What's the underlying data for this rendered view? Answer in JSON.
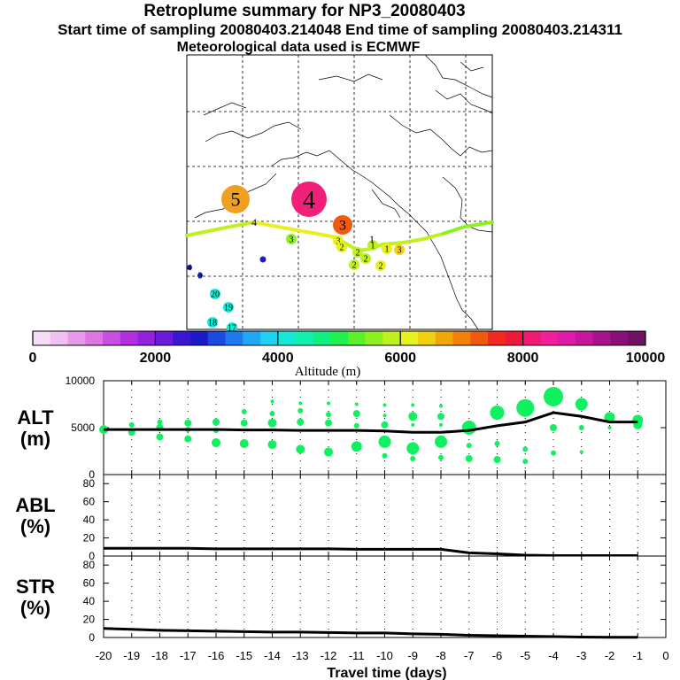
{
  "header": {
    "title": "Retroplume summary for NP3_20080403",
    "sampling": "Start time of sampling 20080403.214048     End time of sampling 20080403.214311",
    "met": "Meteorological data used is ECMWF"
  },
  "colorbar": {
    "label": "Altitude (m)",
    "ticks": [
      "0",
      "2000",
      "4000",
      "6000",
      "8000",
      "10000"
    ],
    "colors": [
      "#f6dcf6",
      "#f0c0f0",
      "#e79ae9",
      "#dc76e2",
      "#c94fe0",
      "#b22ee0",
      "#9420e0",
      "#6a1ad9",
      "#3a16d2",
      "#1a1ac8",
      "#1a4ae0",
      "#1f7af0",
      "#1fa8f5",
      "#1fd0f0",
      "#16e8d6",
      "#12f0b0",
      "#10f080",
      "#1ff050",
      "#5af02a",
      "#8ef020",
      "#c0f020",
      "#e8f01e",
      "#f0d010",
      "#f0a808",
      "#f08008",
      "#f05a10",
      "#f02a20",
      "#f01838",
      "#f01870",
      "#f0209a",
      "#e01aa8",
      "#c8169c",
      "#a8128a",
      "#8a1078",
      "#701060"
    ]
  },
  "chart_data": [
    {
      "type": "scatter",
      "name": "ALT",
      "ylabel": "ALT\n(m)",
      "ylabel_line1": "ALT",
      "ylabel_line2": "(m)",
      "ylim": [
        0,
        10000
      ],
      "yticks": [
        "0",
        "5000",
        "10000"
      ],
      "ytick_values": [
        0,
        5000,
        10000
      ],
      "xlim": [
        -20,
        0
      ],
      "mean_line": {
        "x": [
          -20,
          -19,
          -18,
          -17,
          -16,
          -15,
          -14,
          -13,
          -12,
          -11,
          -10,
          -9,
          -8,
          -7,
          -6,
          -5,
          -4,
          -3,
          -2,
          -1
        ],
        "y": [
          4800,
          4800,
          4800,
          4800,
          4800,
          4750,
          4750,
          4700,
          4700,
          4700,
          4650,
          4500,
          4500,
          4700,
          5200,
          5600,
          6600,
          6200,
          5600,
          5600
        ]
      },
      "clusters": [
        {
          "x": -20,
          "alt": 4800,
          "r": 5
        },
        {
          "x": -19,
          "alt": 5300,
          "r": 3
        },
        {
          "x": -19,
          "alt": 4500,
          "r": 4
        },
        {
          "x": -18,
          "alt": 5600,
          "r": 3
        },
        {
          "x": -18,
          "alt": 5000,
          "r": 4
        },
        {
          "x": -18,
          "alt": 4000,
          "r": 4
        },
        {
          "x": -17,
          "alt": 5500,
          "r": 4
        },
        {
          "x": -17,
          "alt": 4800,
          "r": 3
        },
        {
          "x": -17,
          "alt": 3800,
          "r": 4
        },
        {
          "x": -16,
          "alt": 5600,
          "r": 4
        },
        {
          "x": -16,
          "alt": 4700,
          "r": 3
        },
        {
          "x": -16,
          "alt": 3400,
          "r": 5
        },
        {
          "x": -15,
          "alt": 6700,
          "r": 3
        },
        {
          "x": -15,
          "alt": 5500,
          "r": 4
        },
        {
          "x": -15,
          "alt": 3300,
          "r": 5
        },
        {
          "x": -14,
          "alt": 7800,
          "r": 2
        },
        {
          "x": -14,
          "alt": 6500,
          "r": 3
        },
        {
          "x": -14,
          "alt": 5500,
          "r": 5
        },
        {
          "x": -14,
          "alt": 3200,
          "r": 5
        },
        {
          "x": -13,
          "alt": 7600,
          "r": 2
        },
        {
          "x": -13,
          "alt": 6800,
          "r": 3
        },
        {
          "x": -13,
          "alt": 5600,
          "r": 4
        },
        {
          "x": -13,
          "alt": 2700,
          "r": 5
        },
        {
          "x": -12,
          "alt": 7600,
          "r": 2
        },
        {
          "x": -12,
          "alt": 6400,
          "r": 3
        },
        {
          "x": -12,
          "alt": 5500,
          "r": 4
        },
        {
          "x": -12,
          "alt": 2400,
          "r": 5
        },
        {
          "x": -11,
          "alt": 7500,
          "r": 2
        },
        {
          "x": -11,
          "alt": 6500,
          "r": 4
        },
        {
          "x": -11,
          "alt": 5200,
          "r": 3
        },
        {
          "x": -11,
          "alt": 3000,
          "r": 6
        },
        {
          "x": -10,
          "alt": 7400,
          "r": 2
        },
        {
          "x": -10,
          "alt": 6300,
          "r": 2
        },
        {
          "x": -10,
          "alt": 5300,
          "r": 4
        },
        {
          "x": -10,
          "alt": 3500,
          "r": 7
        },
        {
          "x": -10,
          "alt": 2000,
          "r": 3
        },
        {
          "x": -9,
          "alt": 7400,
          "r": 2
        },
        {
          "x": -9,
          "alt": 6200,
          "r": 5
        },
        {
          "x": -9,
          "alt": 5300,
          "r": 2
        },
        {
          "x": -9,
          "alt": 2800,
          "r": 7
        },
        {
          "x": -9,
          "alt": 1700,
          "r": 3
        },
        {
          "x": -8,
          "alt": 7300,
          "r": 2
        },
        {
          "x": -8,
          "alt": 6200,
          "r": 4
        },
        {
          "x": -8,
          "alt": 5300,
          "r": 2
        },
        {
          "x": -8,
          "alt": 3500,
          "r": 7
        },
        {
          "x": -8,
          "alt": 1800,
          "r": 3
        },
        {
          "x": -7,
          "alt": 5000,
          "r": 8
        },
        {
          "x": -7,
          "alt": 3100,
          "r": 3
        },
        {
          "x": -7,
          "alt": 1700,
          "r": 4
        },
        {
          "x": -6,
          "alt": 6600,
          "r": 8
        },
        {
          "x": -6,
          "alt": 3300,
          "r": 3
        },
        {
          "x": -6,
          "alt": 1600,
          "r": 4
        },
        {
          "x": -5,
          "alt": 7100,
          "r": 10
        },
        {
          "x": -5,
          "alt": 2700,
          "r": 3
        },
        {
          "x": -5,
          "alt": 1400,
          "r": 3
        },
        {
          "x": -4,
          "alt": 8300,
          "r": 11
        },
        {
          "x": -4,
          "alt": 5000,
          "r": 4
        },
        {
          "x": -4,
          "alt": 2300,
          "r": 3
        },
        {
          "x": -3,
          "alt": 7500,
          "r": 7
        },
        {
          "x": -3,
          "alt": 5000,
          "r": 3
        },
        {
          "x": -3,
          "alt": 2400,
          "r": 2
        },
        {
          "x": -2,
          "alt": 6100,
          "r": 6
        },
        {
          "x": -2,
          "alt": 5000,
          "r": 2
        },
        {
          "x": -1,
          "alt": 5800,
          "r": 6
        },
        {
          "x": -1,
          "alt": 5300,
          "r": 5
        }
      ]
    },
    {
      "type": "line",
      "name": "ABL",
      "ylabel_line1": "ABL",
      "ylabel_line2": "(%)",
      "ylim": [
        0,
        90
      ],
      "yticks": [
        "0",
        "20",
        "40",
        "60",
        "80"
      ],
      "ytick_values": [
        0,
        20,
        40,
        60,
        80
      ],
      "x": [
        -20,
        -19,
        -18,
        -17,
        -16,
        -15,
        -14,
        -13,
        -12,
        -11,
        -10,
        -9,
        -8,
        -7,
        -6,
        -5,
        -4,
        -3,
        -2,
        -1
      ],
      "y": [
        8.5,
        8.5,
        8.5,
        8.5,
        8,
        8,
        8,
        8,
        8,
        7.5,
        7.5,
        7.5,
        7.5,
        3.5,
        2.5,
        1,
        0.5,
        0.5,
        0.5,
        0.5
      ]
    },
    {
      "type": "line",
      "name": "STR",
      "ylabel_line1": "STR",
      "ylabel_line2": "(%)",
      "ylim": [
        0,
        90
      ],
      "yticks": [
        "0",
        "20",
        "40",
        "60",
        "80"
      ],
      "ytick_values": [
        0,
        20,
        40,
        60,
        80
      ],
      "x": [
        -20,
        -19,
        -18,
        -17,
        -16,
        -15,
        -14,
        -13,
        -12,
        -11,
        -10,
        -9,
        -8,
        -7,
        -6,
        -5,
        -4,
        -3,
        -2,
        -1
      ],
      "y": [
        10,
        9,
        8,
        7.5,
        7,
        6.5,
        6,
        6,
        5.5,
        5,
        5,
        4,
        3.5,
        2.5,
        2,
        1.5,
        1,
        0.5,
        0.3,
        0.2
      ]
    }
  ],
  "xaxis": {
    "label": "Travel time (days)",
    "ticks": [
      "-20",
      "-19",
      "-18",
      "-17",
      "-16",
      "-15",
      "-14",
      "-13",
      "-12",
      "-11",
      "-10",
      "-9",
      "-8",
      "-7",
      "-6",
      "-5",
      "-4",
      "-3",
      "-2",
      "-1",
      "0"
    ],
    "values": [
      -20,
      -19,
      -18,
      -17,
      -16,
      -15,
      -14,
      -13,
      -12,
      -11,
      -10,
      -9,
      -8,
      -7,
      -6,
      -5,
      -4,
      -3,
      -2,
      -1,
      0
    ]
  },
  "map": {
    "markers": [
      {
        "label": "5",
        "color": "#f0a020",
        "size": "large"
      },
      {
        "label": "4",
        "color": "#f0207a",
        "size": "xlarge"
      },
      {
        "label": "3",
        "color": "#f05a10",
        "size": "medium"
      },
      {
        "label": "3",
        "color": "#8ef020",
        "size": "small"
      },
      {
        "label": "3",
        "color": "#e8f01e",
        "size": "small"
      },
      {
        "label": "2",
        "color": "#e8f01e",
        "size": "small"
      },
      {
        "label": "2",
        "color": "#c0f020",
        "size": "small"
      },
      {
        "label": "2",
        "color": "#c0f020",
        "size": "small"
      },
      {
        "label": "2",
        "color": "#c0f020",
        "size": "small"
      },
      {
        "label": "2",
        "color": "#e8f01e",
        "size": "small"
      },
      {
        "label": "1",
        "color": "#c0f020",
        "size": "small"
      },
      {
        "label": "1",
        "color": "#e8f01e",
        "size": "small"
      },
      {
        "label": "3",
        "color": "#f0d010",
        "size": "small"
      },
      {
        "label": "4",
        "color": "#1a1ac8",
        "size": "tiny"
      },
      {
        "label": "3",
        "color": "#1a1ac8",
        "size": "tiny"
      },
      {
        "label": "20",
        "color": "#16e8d6",
        "size": "small"
      },
      {
        "label": "19",
        "color": "#16e8d6",
        "size": "small"
      },
      {
        "label": "18",
        "color": "#16e8d6",
        "size": "small"
      },
      {
        "label": "17",
        "color": "#16e8d6",
        "size": "small"
      },
      {
        "label": "4",
        "color": "#e8f01e",
        "size": "none"
      },
      {
        "label": "1",
        "color": "#1ff050",
        "size": "none"
      }
    ]
  }
}
